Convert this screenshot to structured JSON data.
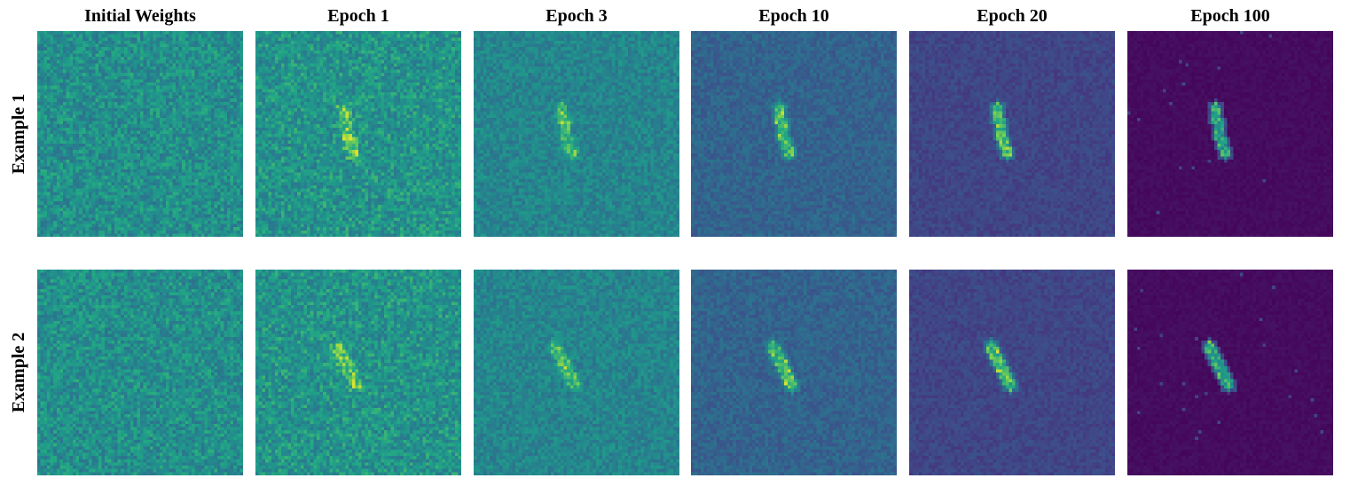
{
  "columns": [
    {
      "title": "Initial Weights",
      "key": "initial"
    },
    {
      "title": "Epoch 1",
      "key": "e1"
    },
    {
      "title": "Epoch 3",
      "key": "e3"
    },
    {
      "title": "Epoch 10",
      "key": "e10"
    },
    {
      "title": "Epoch 20",
      "key": "e20"
    },
    {
      "title": "Epoch 100",
      "key": "e100"
    }
  ],
  "rows": [
    {
      "label": "Example 1",
      "key": "ex1"
    },
    {
      "label": "Example 2",
      "key": "ex2"
    }
  ],
  "colormap": "viridis",
  "background_colors": {
    "initial": "#2a9286",
    "e1": "#299286",
    "e3": "#2a8a8a",
    "e10": "#335f8c",
    "e20": "#3b4a8a",
    "e100": "#43115f"
  },
  "highlight_color": "#d8e219"
}
